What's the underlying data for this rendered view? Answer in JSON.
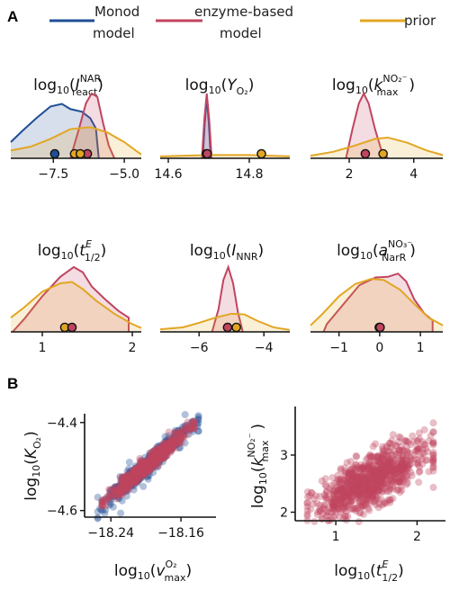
{
  "panels": {
    "a": "A",
    "b": "B"
  },
  "legend": [
    {
      "name": "monod",
      "line1": "Monod",
      "line2": "model",
      "color": "#1f4e96"
    },
    {
      "name": "enzyme",
      "line1": "enzyme-based",
      "line2": "model",
      "color": "#c0455f"
    },
    {
      "name": "prior",
      "line1": "prior",
      "line2": "",
      "color": "#e2a623"
    }
  ],
  "colors": {
    "monod": "#1f4e96",
    "enzyme": "#c0455f",
    "prior": "#e2a623",
    "axis": "#111111"
  },
  "chart_data": [
    {
      "type": "area",
      "title": "log10(I_react^NAR)",
      "title_parts": {
        "fn": "log",
        "sub10": "10",
        "open": "(",
        "base": "I",
        "sup": "NAR",
        "sub": "react",
        "close": ")"
      },
      "xlim": [
        -9.0,
        -4.4
      ],
      "ticks": [
        -7.5,
        -5.0
      ],
      "tick_labels": [
        "−7.5",
        "−5.0"
      ],
      "series": [
        {
          "name": "Monod model",
          "color": "#1f4e96",
          "x": [
            -9.0,
            -8.6,
            -8.1,
            -7.6,
            -7.2,
            -6.9,
            -6.5,
            -6.2,
            -6.0,
            -5.9
          ],
          "y": [
            0.25,
            0.42,
            0.62,
            0.8,
            0.84,
            0.76,
            0.72,
            0.62,
            0.46,
            0.0
          ]
        },
        {
          "name": "enzyme-based model",
          "color": "#c0455f",
          "x": [
            -6.9,
            -6.6,
            -6.35,
            -6.15,
            -5.95,
            -5.75,
            -5.55,
            -5.35
          ],
          "y": [
            0.0,
            0.45,
            0.85,
            1.0,
            0.95,
            0.55,
            0.2,
            0.0
          ]
        },
        {
          "name": "prior",
          "color": "#e2a623",
          "x": [
            -9.0,
            -8.3,
            -7.6,
            -6.9,
            -6.2,
            -5.6,
            -5.0,
            -4.6,
            -4.4
          ],
          "y": [
            0.12,
            0.18,
            0.3,
            0.45,
            0.48,
            0.4,
            0.25,
            0.12,
            0.06
          ]
        }
      ],
      "markers": [
        {
          "color": "#1f4e96",
          "x": -7.45
        },
        {
          "color": "#e2a623",
          "x": -6.75
        },
        {
          "color": "#c0455f",
          "x": -6.3
        },
        {
          "color": "#e2a623",
          "x": -6.55
        }
      ]
    },
    {
      "type": "area",
      "title": "log10(Y_O2)",
      "title_parts": {
        "fn": "log",
        "sub10": "10",
        "open": "(",
        "base": "Y",
        "sup": "",
        "sub": "O₂",
        "close": ")"
      },
      "xlim": [
        14.58,
        14.9
      ],
      "ticks": [
        14.6,
        14.8
      ],
      "tick_labels": [
        "14.6",
        "14.8"
      ],
      "series": [
        {
          "name": "Monod model",
          "color": "#1f4e96",
          "x": [
            14.685,
            14.69,
            14.695,
            14.7,
            14.705
          ],
          "y": [
            0.0,
            0.55,
            0.95,
            0.55,
            0.0
          ]
        },
        {
          "name": "enzyme-based model",
          "color": "#c0455f",
          "x": [
            14.683,
            14.689,
            14.695,
            14.701,
            14.707
          ],
          "y": [
            0.0,
            0.6,
            1.0,
            0.6,
            0.0
          ]
        },
        {
          "name": "prior",
          "color": "#e2a623",
          "x": [
            14.58,
            14.7,
            14.8,
            14.9
          ],
          "y": [
            0.03,
            0.05,
            0.05,
            0.03
          ]
        }
      ],
      "markers": [
        {
          "color": "#1f4e96",
          "x": 14.694
        },
        {
          "color": "#c0455f",
          "x": 14.696
        },
        {
          "color": "#e2a623",
          "x": 14.83
        }
      ]
    },
    {
      "type": "area",
      "title": "log10(k_max^NO2-)",
      "title_parts": {
        "fn": "log",
        "sub10": "10",
        "open": "(",
        "base": "k",
        "sup": "NO₂⁻",
        "sub": "max",
        "close": ")"
      },
      "xlim": [
        0.8,
        4.9
      ],
      "ticks": [
        2,
        4
      ],
      "tick_labels": [
        "2",
        "4"
      ],
      "series": [
        {
          "name": "enzyme-based model",
          "color": "#c0455f",
          "x": [
            1.9,
            2.1,
            2.3,
            2.45,
            2.6,
            2.8,
            3.0,
            3.2
          ],
          "y": [
            0.0,
            0.45,
            0.85,
            1.0,
            0.85,
            0.45,
            0.12,
            0.0
          ]
        },
        {
          "name": "prior",
          "color": "#e2a623",
          "x": [
            0.8,
            1.5,
            2.2,
            2.8,
            3.2,
            3.8,
            4.4,
            4.9
          ],
          "y": [
            0.04,
            0.1,
            0.2,
            0.3,
            0.32,
            0.24,
            0.12,
            0.05
          ]
        }
      ],
      "markers": [
        {
          "color": "#c0455f",
          "x": 2.5
        },
        {
          "color": "#e2a623",
          "x": 3.05
        }
      ]
    },
    {
      "type": "area",
      "title": "log10(t_1/2^E)",
      "title_parts": {
        "fn": "log",
        "sub10": "10",
        "open": "(",
        "base": "t",
        "sup": "E",
        "sub": "1/2",
        "close": ")"
      },
      "xlim": [
        0.65,
        2.1
      ],
      "ticks": [
        1,
        2
      ],
      "tick_labels": [
        "1",
        "2"
      ],
      "series": [
        {
          "name": "enzyme-based model",
          "color": "#c0455f",
          "x": [
            0.67,
            0.8,
            1.0,
            1.2,
            1.35,
            1.45,
            1.55,
            1.7,
            1.85,
            1.96,
            1.96
          ],
          "y": [
            0.0,
            0.2,
            0.55,
            0.85,
            1.0,
            0.92,
            0.7,
            0.5,
            0.32,
            0.22,
            0.0
          ]
        },
        {
          "name": "prior",
          "color": "#e2a623",
          "x": [
            0.65,
            0.8,
            1.0,
            1.2,
            1.33,
            1.45,
            1.6,
            1.8,
            2.0,
            2.1
          ],
          "y": [
            0.22,
            0.38,
            0.62,
            0.75,
            0.77,
            0.66,
            0.48,
            0.28,
            0.12,
            0.06
          ]
        }
      ],
      "markers": [
        {
          "color": "#e2a623",
          "x": 1.25
        },
        {
          "color": "#c0455f",
          "x": 1.33
        }
      ]
    },
    {
      "type": "area",
      "title": "log10(I_NNR)",
      "title_parts": {
        "fn": "log",
        "sub10": "10",
        "open": "(",
        "base": "I",
        "sup": "",
        "sub": "NNR",
        "close": ")"
      },
      "xlim": [
        -7.2,
        -3.2
      ],
      "ticks": [
        -6,
        -4
      ],
      "tick_labels": [
        "−6",
        "−4"
      ],
      "series": [
        {
          "name": "enzyme-based model",
          "color": "#c0455f",
          "x": [
            -5.6,
            -5.4,
            -5.25,
            -5.1,
            -4.95,
            -4.8,
            -4.65
          ],
          "y": [
            0.0,
            0.35,
            0.8,
            1.0,
            0.75,
            0.3,
            0.0
          ]
        },
        {
          "name": "prior",
          "color": "#e2a623",
          "x": [
            -7.2,
            -6.5,
            -6.0,
            -5.5,
            -5.0,
            -4.6,
            -4.2,
            -3.7,
            -3.2
          ],
          "y": [
            0.04,
            0.07,
            0.14,
            0.22,
            0.28,
            0.27,
            0.17,
            0.07,
            0.03
          ]
        }
      ],
      "markers": [
        {
          "color": "#c0455f",
          "x": -5.12
        },
        {
          "color": "#e2a623",
          "x": -4.85
        }
      ]
    },
    {
      "type": "area",
      "title": "log10(a_NarR^NO3-)",
      "title_parts": {
        "fn": "log",
        "sub10": "10",
        "open": "(",
        "base": "a",
        "sup": "NO₃⁻",
        "sub": "NarR",
        "close": ")"
      },
      "xlim": [
        -1.7,
        1.55
      ],
      "ticks": [
        -1,
        0,
        1
      ],
      "tick_labels": [
        "−1",
        "0",
        "1"
      ],
      "series": [
        {
          "name": "enzyme-based model",
          "color": "#c0455f",
          "x": [
            -1.38,
            -1.3,
            -0.9,
            -0.5,
            -0.1,
            0.2,
            0.45,
            0.65,
            0.85,
            1.1,
            1.3,
            1.3
          ],
          "y": [
            0.0,
            0.12,
            0.42,
            0.72,
            0.84,
            0.85,
            0.9,
            0.78,
            0.5,
            0.28,
            0.18,
            0.0
          ]
        },
        {
          "name": "prior",
          "color": "#e2a623",
          "x": [
            -1.7,
            -1.4,
            -1.0,
            -0.6,
            -0.2,
            0.1,
            0.5,
            0.9,
            1.2,
            1.55
          ],
          "y": [
            0.1,
            0.28,
            0.55,
            0.74,
            0.82,
            0.8,
            0.65,
            0.4,
            0.22,
            0.1
          ]
        }
      ],
      "markers": [
        {
          "color": "#e2a623",
          "x": -0.01
        },
        {
          "color": "#c0455f",
          "x": 0.01
        }
      ]
    },
    {
      "type": "scatter",
      "title": "",
      "xlabel": "log10(v_max^O2)",
      "ylabel": "log10(K_O2)",
      "xlim": [
        -18.27,
        -18.12
      ],
      "ylim": [
        -4.615,
        -4.38
      ],
      "xticks": [
        -18.24,
        -18.16
      ],
      "xtick_labels": [
        "−18.24",
        "−18.16"
      ],
      "yticks": [
        -4.4,
        -4.6
      ],
      "ytick_labels": [
        "−4.4",
        "−4.6"
      ],
      "series": [
        {
          "name": "Monod model",
          "color": "#1f4e96",
          "trend": {
            "x0": -18.255,
            "y0": -4.595,
            "x1": -18.14,
            "y1": -4.395
          },
          "n": 450,
          "spread": 0.012
        },
        {
          "name": "enzyme-based model",
          "color": "#c0455f",
          "trend": {
            "x0": -18.25,
            "y0": -4.585,
            "x1": -18.145,
            "y1": -4.405
          },
          "n": 650,
          "spread": 0.009
        }
      ]
    },
    {
      "type": "scatter",
      "title": "",
      "xlabel": "log10(t_1/2^E)",
      "ylabel": "log10(k_max^NO2-)",
      "xlim": [
        0.5,
        2.35
      ],
      "ylim": [
        1.85,
        3.85
      ],
      "xticks": [
        1,
        2
      ],
      "xtick_labels": [
        "1",
        "2"
      ],
      "yticks": [
        2,
        3
      ],
      "ytick_labels": [
        "2",
        "3"
      ],
      "series": [
        {
          "name": "enzyme-based model",
          "color": "#c0455f",
          "trend": {
            "x0": 0.65,
            "y0": 2.0,
            "x1": 2.2,
            "y1": 3.1
          },
          "n": 900,
          "spread": 0.22
        }
      ]
    }
  ]
}
